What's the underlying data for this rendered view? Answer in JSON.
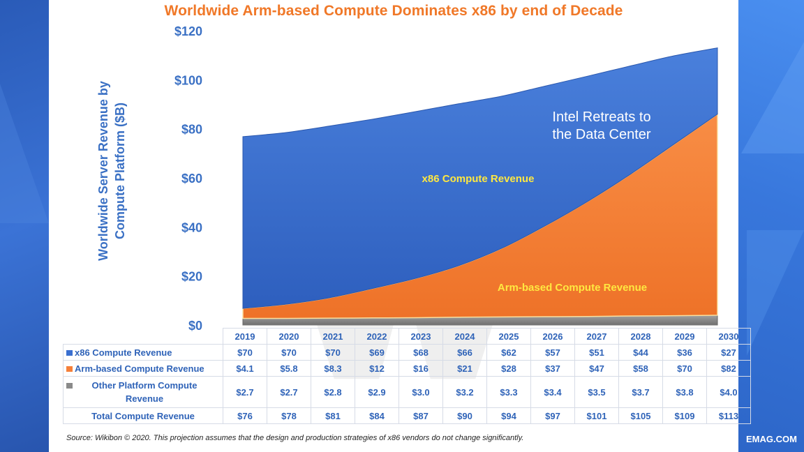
{
  "colors": {
    "x86": "#3a6fd0",
    "arm": "#f5803a",
    "other": "#8a8a8a",
    "title": "#f07828",
    "axis_text": "#3a70c4",
    "annotation_yellow": "#ffe840"
  },
  "chart_data": {
    "type": "area",
    "stacked": true,
    "title": "Worldwide Arm-based Compute Dominates x86 by end of Decade",
    "ylabel": "Worldwide Server Revenue by Compute Platform ($B)",
    "xlabel": "",
    "ylim": [
      0,
      120
    ],
    "yticks": [
      0,
      20,
      40,
      60,
      80,
      100,
      120
    ],
    "ytick_labels": [
      "$0",
      "$20",
      "$40",
      "$60",
      "$80",
      "$100",
      "$120"
    ],
    "categories": [
      "2019",
      "2020",
      "2021",
      "2022",
      "2023",
      "2024",
      "2025",
      "2026",
      "2027",
      "2028",
      "2029",
      "2030"
    ],
    "series": [
      {
        "name": "Other Platform Compute Revenue",
        "values": [
          2.7,
          2.7,
          2.8,
          2.9,
          3.0,
          3.2,
          3.3,
          3.4,
          3.5,
          3.7,
          3.8,
          4.0
        ]
      },
      {
        "name": "Arm-based Compute Revenue",
        "values": [
          4.1,
          5.8,
          8.3,
          12,
          16,
          21,
          28,
          37,
          47,
          58,
          70,
          82
        ]
      },
      {
        "name": "x86 Compute Revenue",
        "values": [
          70,
          70,
          70,
          69,
          68,
          66,
          62,
          57,
          51,
          44,
          36,
          27
        ]
      }
    ],
    "totals": [
      76,
      78,
      81,
      84,
      87,
      90,
      94,
      97,
      101,
      105,
      109,
      113
    ],
    "annotations": {
      "intel": [
        "Intel Retreats to",
        "the Data Center"
      ],
      "x86_label": "x86 Compute Revenue",
      "arm_label": "Arm-based Compute Revenue"
    },
    "table": {
      "rows": [
        {
          "label": "x86 Compute Revenue",
          "values": [
            "$70",
            "$70",
            "$70",
            "$69",
            "$68",
            "$66",
            "$62",
            "$57",
            "$51",
            "$44",
            "$36",
            "$27"
          ]
        },
        {
          "label": "Arm-based Compute Revenue",
          "values": [
            "$4.1",
            "$5.8",
            "$8.3",
            "$12",
            "$16",
            "$21",
            "$28",
            "$37",
            "$47",
            "$58",
            "$70",
            "$82"
          ]
        },
        {
          "label_line1": "Other Platform Compute",
          "label_line2": "Revenue",
          "values": [
            "$2.7",
            "$2.7",
            "$2.8",
            "$2.9",
            "$3.0",
            "$3.2",
            "$3.3",
            "$3.4",
            "$3.5",
            "$3.7",
            "$3.8",
            "$4.0"
          ]
        },
        {
          "label": "Total Compute Revenue",
          "values": [
            "$76",
            "$78",
            "$81",
            "$84",
            "$87",
            "$90",
            "$94",
            "$97",
            "$101",
            "$105",
            "$109",
            "$113"
          ]
        }
      ]
    }
  },
  "footer": {
    "source": "Source: Wikibon © 2020. This projection assumes that the design and production strategies of x86 vendors do not change significantly.",
    "brand": "EMAG.COM"
  }
}
